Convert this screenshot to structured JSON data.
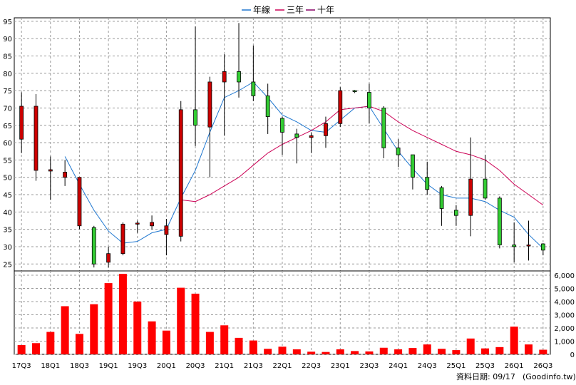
{
  "chart_data": [
    {
      "type": "candlestick",
      "legend": {
        "placement": "top-center",
        "entries": [
          {
            "name": "年線",
            "color": "#1f77d0"
          },
          {
            "name": "三年",
            "color": "#cc0055"
          },
          {
            "name": "十年",
            "color": "#880066"
          }
        ]
      },
      "ylim": [
        23,
        96
      ],
      "yticks": [
        25,
        30,
        35,
        40,
        45,
        50,
        55,
        60,
        65,
        70,
        75,
        80,
        85,
        90,
        95
      ],
      "grid": true,
      "x_tick_labels": [
        "17Q3",
        "18Q1",
        "18Q3",
        "19Q1",
        "19Q3",
        "20Q1",
        "20Q3",
        "21Q1",
        "21Q3",
        "22Q1",
        "22Q3",
        "23Q1",
        "23Q3",
        "24Q1",
        "24Q3",
        "25Q1",
        "25Q3",
        "26Q1",
        "26Q3"
      ],
      "quarters": [
        "17Q3",
        "17Q4",
        "18Q1",
        "18Q2",
        "18Q3",
        "18Q4",
        "19Q1",
        "19Q2",
        "19Q3",
        "19Q4",
        "20Q1",
        "20Q2",
        "20Q3",
        "20Q4",
        "21Q1",
        "21Q2",
        "21Q3",
        "21Q4",
        "22Q1",
        "22Q2",
        "22Q3",
        "22Q4",
        "23Q1",
        "23Q2",
        "23Q3",
        "23Q4",
        "24Q1",
        "24Q2",
        "24Q3",
        "24Q4",
        "25Q1",
        "25Q2",
        "25Q3",
        "25Q4",
        "26Q1",
        "26Q2",
        "26Q3"
      ],
      "candles": [
        {
          "o": 61,
          "h": 74.5,
          "l": 57,
          "c": 70.5
        },
        {
          "o": 52,
          "h": 74,
          "l": 49,
          "c": 70.5
        },
        {
          "o": 51.8,
          "h": 56,
          "l": 43.5,
          "c": 52.2
        },
        {
          "o": 50,
          "h": 55,
          "l": 47.5,
          "c": 51.5
        },
        {
          "o": 36,
          "h": 50,
          "l": 35,
          "c": 50
        },
        {
          "o": 35.5,
          "h": 36,
          "l": 24,
          "c": 25
        },
        {
          "o": 25.5,
          "h": 30,
          "l": 24,
          "c": 28
        },
        {
          "o": 28,
          "h": 37,
          "l": 27.5,
          "c": 36.5
        },
        {
          "o": 36.5,
          "h": 37.5,
          "l": 34,
          "c": 36.8
        },
        {
          "o": 36,
          "h": 39,
          "l": 35,
          "c": 37
        },
        {
          "o": 33.5,
          "h": 38,
          "l": 27.5,
          "c": 36
        },
        {
          "o": 33,
          "h": 72,
          "l": 31.5,
          "c": 69.5
        },
        {
          "o": 69.5,
          "h": 93.5,
          "l": 59,
          "c": 65
        },
        {
          "o": 64.5,
          "h": 79,
          "l": 50,
          "c": 77.5
        },
        {
          "o": 77.5,
          "h": 85.5,
          "l": 62,
          "c": 80.5
        },
        {
          "o": 80.5,
          "h": 94.5,
          "l": 73,
          "c": 77.5
        },
        {
          "o": 77.5,
          "h": 88,
          "l": 72,
          "c": 73.5
        },
        {
          "o": 73.5,
          "h": 77,
          "l": 62.5,
          "c": 67.5
        },
        {
          "o": 67,
          "h": 67.5,
          "l": 56.5,
          "c": 63
        },
        {
          "o": 62.5,
          "h": 64,
          "l": 54,
          "c": 61.5
        },
        {
          "o": 61.5,
          "h": 63,
          "l": 57,
          "c": 62
        },
        {
          "o": 62,
          "h": 67.5,
          "l": 58.5,
          "c": 65.5
        },
        {
          "o": 65.5,
          "h": 76,
          "l": 64.5,
          "c": 75
        },
        {
          "o": 75,
          "h": 75.2,
          "l": 74.3,
          "c": 74.8
        },
        {
          "o": 74.5,
          "h": 77,
          "l": 65.5,
          "c": 70
        },
        {
          "o": 70,
          "h": 70.5,
          "l": 55.5,
          "c": 58.5
        },
        {
          "o": 58.5,
          "h": 61,
          "l": 53,
          "c": 56.5
        },
        {
          "o": 56.5,
          "h": 56.5,
          "l": 46.5,
          "c": 50
        },
        {
          "o": 50,
          "h": 54.5,
          "l": 45,
          "c": 46.5
        },
        {
          "o": 47,
          "h": 47.5,
          "l": 36,
          "c": 41
        },
        {
          "o": 40.5,
          "h": 42,
          "l": 36,
          "c": 39
        },
        {
          "o": 39,
          "h": 61.5,
          "l": 33,
          "c": 49.5
        },
        {
          "o": 49.5,
          "h": 56.5,
          "l": 43.5,
          "c": 44
        },
        {
          "o": 44,
          "h": 44.5,
          "l": 29.5,
          "c": 30.5
        },
        {
          "o": 30.5,
          "h": 37,
          "l": 25.5,
          "c": 30
        },
        {
          "o": 30.5,
          "h": 37.5,
          "l": 26,
          "c": 30.5
        },
        {
          "o": 30.8,
          "h": 31,
          "l": 27.5,
          "c": 29
        }
      ],
      "series": [
        {
          "name": "年線",
          "color": "#1f77d0",
          "values": [
            null,
            null,
            null,
            56,
            48,
            40.5,
            34.5,
            31,
            31.5,
            34,
            35,
            44,
            52,
            63,
            73,
            75,
            77.5,
            73,
            68,
            66,
            63.5,
            63,
            66.5,
            70,
            70.5,
            64,
            57.5,
            52.5,
            48,
            45,
            44,
            44,
            43,
            40.5,
            38.5,
            33.5,
            29.5
          ]
        },
        {
          "name": "三年",
          "color": "#cc0055",
          "values": [
            null,
            null,
            null,
            null,
            null,
            null,
            null,
            null,
            null,
            null,
            null,
            43.5,
            43,
            45,
            47.5,
            50,
            53.5,
            57,
            59.5,
            61.5,
            63.5,
            66,
            69.5,
            70,
            70.5,
            69,
            66,
            63.5,
            61.5,
            59.5,
            57.5,
            56.5,
            55,
            52,
            48,
            45,
            42
          ]
        }
      ]
    },
    {
      "type": "bar",
      "y_unit": "volume",
      "ylim": [
        0,
        6000
      ],
      "yticks": [
        0,
        1000,
        2000,
        3000,
        4000,
        5000,
        6000
      ],
      "yticklabels": [
        "0",
        "1,000",
        "2,000",
        "3,000",
        "4,000",
        "5,000",
        "6,000"
      ],
      "color": "#ff0000",
      "values": [
        700,
        850,
        1700,
        3650,
        1550,
        3800,
        5400,
        6100,
        4000,
        2500,
        1800,
        5050,
        4600,
        1700,
        2200,
        1250,
        1050,
        420,
        580,
        380,
        200,
        180,
        380,
        250,
        220,
        500,
        380,
        480,
        750,
        420,
        320,
        1200,
        450,
        550,
        2100,
        750,
        350
      ]
    }
  ],
  "footer": {
    "date_label": "資料日期: 09/17",
    "source_label": "(Goodinfo.tw)"
  }
}
